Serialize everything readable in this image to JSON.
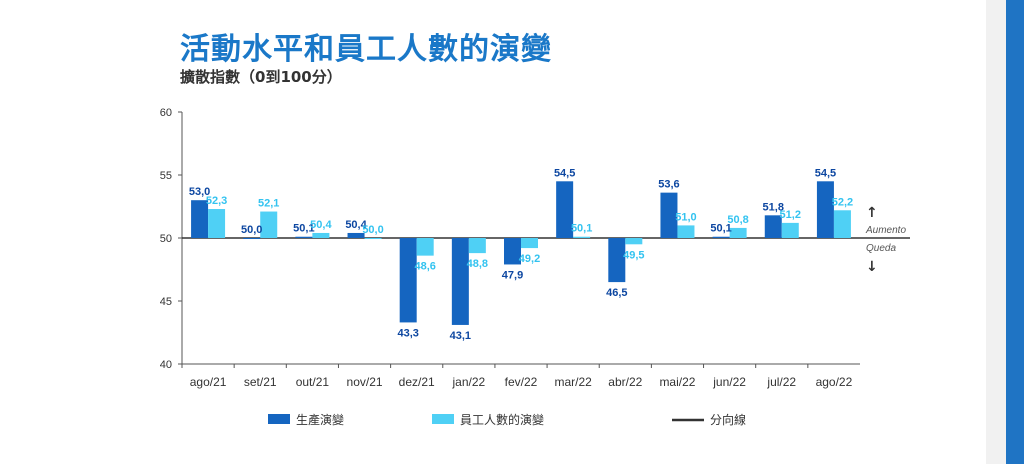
{
  "title": "活動水平和員工人數的演變",
  "subtitle": "擴散指數（0到100分）",
  "colors": {
    "production": "#1565c0",
    "employees": "#4fd0f5",
    "divider": "#333333",
    "label_dark": "#0d47a1",
    "label_light": "#33c3f0"
  },
  "chart_data": {
    "type": "bar",
    "title": "活動水平和員工人數的演變",
    "subtitle": "擴散指數（0到100分）",
    "categories": [
      "ago/21",
      "set/21",
      "out/21",
      "nov/21",
      "dez/21",
      "jan/22",
      "fev/22",
      "mar/22",
      "abr/22",
      "mai/22",
      "jun/22",
      "jul/22",
      "ago/22"
    ],
    "baseline": 50,
    "series": [
      {
        "name": "生產演變",
        "values": [
          53.0,
          50.0,
          50.1,
          50.4,
          43.3,
          43.1,
          47.9,
          54.5,
          46.5,
          53.6,
          50.1,
          51.8,
          54.5
        ],
        "labels": [
          "53,0",
          "50,0",
          "50,1",
          "50,4",
          "43,3",
          "43,1",
          "47,9",
          "54,5",
          "46,5",
          "53,6",
          "50,1",
          "51,8",
          "54,5"
        ]
      },
      {
        "name": "員工人數的演變",
        "values": [
          52.3,
          52.1,
          50.4,
          50.0,
          48.6,
          48.8,
          49.2,
          50.1,
          49.5,
          51.0,
          50.8,
          51.2,
          52.2
        ],
        "labels": [
          "52,3",
          "52,1",
          "50,4",
          "50,0",
          "48,6",
          "48,8",
          "49,2",
          "50,1",
          "49,5",
          "51,0",
          "50,8",
          "51,2",
          "52,2"
        ]
      }
    ],
    "ylim": [
      40,
      60
    ],
    "yticks": [
      40,
      45,
      50,
      55,
      60
    ],
    "grid": false,
    "legend_position": "bottom",
    "annotations": {
      "up": "Aumento",
      "down": "Queda"
    }
  },
  "legend": {
    "production": "生產演變",
    "employees": "員工人數的演變",
    "divider": "分向線"
  }
}
